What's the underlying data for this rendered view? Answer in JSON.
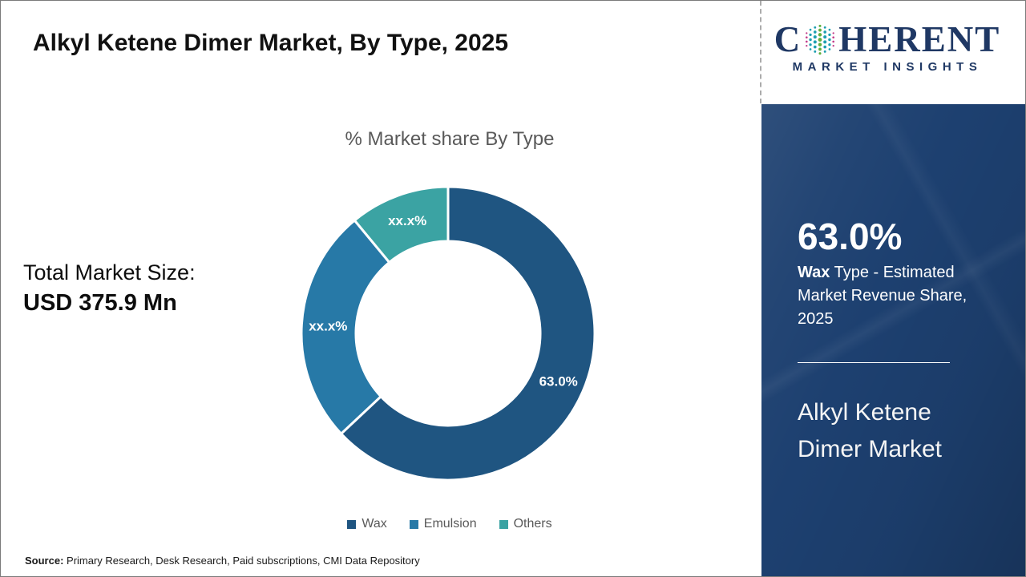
{
  "header": {
    "title": "Alkyl Ketene Dimer Market, By Type, 2025"
  },
  "logo": {
    "brand_prefix": "C",
    "brand_suffix": "HERENT",
    "brand_subtitle": "MARKET INSIGHTS",
    "globe_icon": "dotted-globe-icon",
    "colors": {
      "navy": "#1F3864",
      "green": "#5FAE3D",
      "teal": "#1D9FB0",
      "magenta": "#C13C8A"
    }
  },
  "left_panel": {
    "total_size_label": "Total Market Size:",
    "total_size_value": "USD 375.9 Mn"
  },
  "chart": {
    "title": "% Market share By Type"
  },
  "chart_data": {
    "type": "pie",
    "subtype": "donut",
    "title": "% Market share By Type",
    "categories": [
      "Wax",
      "Emulsion",
      "Others"
    ],
    "values": [
      63.0,
      26.0,
      11.0
    ],
    "slice_labels": [
      "63.0%",
      "xx.x%",
      "xx.x%"
    ],
    "colors": [
      "#1F5581",
      "#2779A7",
      "#3BA3A3"
    ],
    "legend_position": "bottom",
    "start_angle_deg": 0,
    "direction": "clockwise",
    "values_note": "Emulsion and Others shares are masked as xx.x% in the figure; numeric values estimated from arc angles"
  },
  "sidebar": {
    "highlight_value": "63.0%",
    "highlight_bold": "Wax",
    "highlight_rest": " Type - Estimated Market Revenue Share, 2025",
    "market_name": "Alkyl Ketene Dimer Market"
  },
  "footer": {
    "source_label": "Source:",
    "source_text": " Primary Research, Desk Research, Paid subscriptions, CMI Data Repository"
  }
}
